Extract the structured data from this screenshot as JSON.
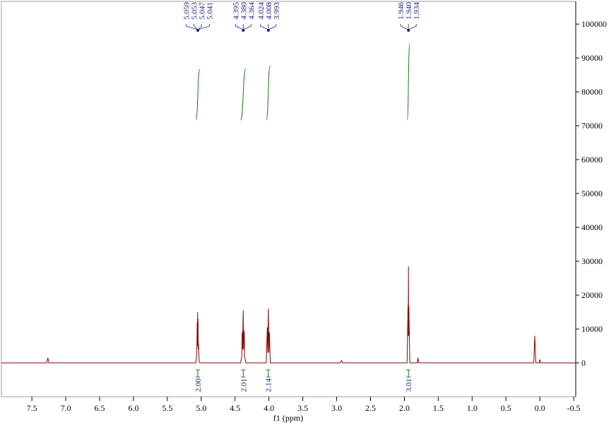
{
  "chart_data": {
    "type": "line",
    "x_label": "f1 (ppm)",
    "xlim": [
      7.95,
      -0.53
    ],
    "ylim": [
      -10000,
      106700
    ],
    "xticks": [
      7.5,
      {
        "value": 7,
        "label": "7.0"
      },
      6.5,
      {
        "value": 6,
        "label": "6.0"
      },
      5.5,
      {
        "value": 5,
        "label": "5.0"
      },
      4.5,
      {
        "value": 4,
        "label": "4.0"
      },
      3.5,
      {
        "value": 3,
        "label": "3.0"
      },
      2.5,
      {
        "value": 2,
        "label": "2.0"
      },
      1.5,
      {
        "value": 1,
        "label": "1.0"
      },
      0.5,
      {
        "value": 0,
        "label": "0.0"
      },
      -0.5
    ],
    "yticks": [
      0,
      10000,
      20000,
      30000,
      40000,
      50000,
      60000,
      70000,
      80000,
      90000,
      100000
    ],
    "color": "#8b0000",
    "x": [
      7.95,
      7.28,
      7.265,
      7.25,
      6.0,
      5.08,
      5.065,
      5.059,
      5.056,
      5.053,
      5.05,
      5.047,
      5.044,
      5.041,
      5.03,
      5.02,
      4.42,
      4.4,
      4.395,
      4.39,
      4.38,
      4.375,
      4.364,
      4.36,
      4.34,
      4.04,
      4.024,
      4.018,
      4.008,
      4.002,
      3.993,
      3.98,
      2.95,
      2.93,
      2.91,
      1.96,
      1.946,
      1.943,
      1.94,
      1.937,
      1.934,
      1.92,
      1.81,
      1.8,
      1.79,
      0.09,
      0.075,
      0.06,
      0.01,
      0.0,
      -0.01,
      -0.53
    ],
    "values": [
      0,
      0,
      1500,
      0,
      0,
      0,
      3000,
      12000,
      5000,
      15000,
      6000,
      13000,
      4000,
      6000,
      500,
      0,
      0,
      2000,
      9000,
      4000,
      15500,
      4000,
      9500,
      2000,
      0,
      0,
      10500,
      3000,
      16000,
      3000,
      9000,
      0,
      0,
      700,
      0,
      0,
      17000,
      8000,
      28500,
      8000,
      16500,
      0,
      0,
      1500,
      0,
      0,
      8000,
      0,
      0,
      1000,
      0,
      0
    ],
    "peak_groups": [
      {
        "peaks": [
          5.059,
          5.053,
          5.047,
          5.041
        ]
      },
      {
        "peaks": [
          4.395,
          {
            "value": 4.38,
            "label": "4.380"
          },
          4.364
        ]
      },
      {
        "peaks": [
          4.024,
          4.008,
          3.993
        ]
      },
      {
        "peaks": [
          1.946,
          {
            "value": 1.94,
            "label": "1.940"
          },
          1.934
        ]
      }
    ],
    "integrals": [
      {
        "from": 5.08,
        "to": 5.02,
        "value": 2,
        "label": "2.00"
      },
      {
        "from": 4.42,
        "to": 4.34,
        "value": 2.01,
        "label": "2.01"
      },
      {
        "from": 4.04,
        "to": 3.98,
        "value": 2.14,
        "label": "2.14"
      },
      {
        "from": 1.96,
        "to": 1.92,
        "value": 3.01,
        "label": "3.01"
      }
    ]
  }
}
